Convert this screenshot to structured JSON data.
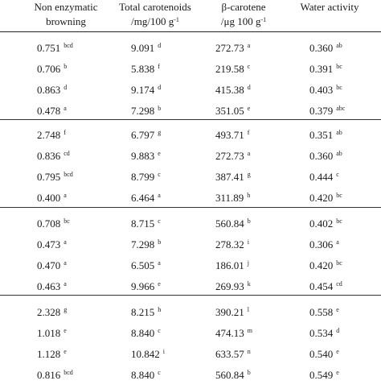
{
  "headers": [
    {
      "line1": "Non enzymatic",
      "line2": "browning",
      "unit_sup": ""
    },
    {
      "line1": "Total carotenoids",
      "line2": "/mg/100 g",
      "unit_sup": "-1"
    },
    {
      "line1": "β-carotene",
      "line2": "/μg 100 g",
      "unit_sup": "-1"
    },
    {
      "line1": "Water activity",
      "line2": "",
      "unit_sup": ""
    }
  ],
  "groups": [
    {
      "rows": [
        [
          {
            "v": "0.751",
            "s": "bcd"
          },
          {
            "v": "9.091",
            "s": "d"
          },
          {
            "v": "272.73",
            "s": "a"
          },
          {
            "v": "0.360",
            "s": "ab"
          }
        ],
        [
          {
            "v": "0.706",
            "s": "b"
          },
          {
            "v": "5.838",
            "s": "f"
          },
          {
            "v": "219.58",
            "s": "c"
          },
          {
            "v": "0.391",
            "s": "bc"
          }
        ],
        [
          {
            "v": "0.863",
            "s": "d"
          },
          {
            "v": "9.174",
            "s": "d"
          },
          {
            "v": "415.38",
            "s": "d"
          },
          {
            "v": "0.403",
            "s": "bc"
          }
        ],
        [
          {
            "v": "0.478",
            "s": "a"
          },
          {
            "v": "7.298",
            "s": "b"
          },
          {
            "v": "351.05",
            "s": "e"
          },
          {
            "v": "0.379",
            "s": "abc"
          }
        ]
      ]
    },
    {
      "rows": [
        [
          {
            "v": "2.748",
            "s": "f"
          },
          {
            "v": "6.797",
            "s": "g"
          },
          {
            "v": "493.71",
            "s": "f"
          },
          {
            "v": "0.351",
            "s": "ab"
          }
        ],
        [
          {
            "v": "0.836",
            "s": "cd"
          },
          {
            "v": "9.883",
            "s": "e"
          },
          {
            "v": "272.73",
            "s": "a"
          },
          {
            "v": "0.360",
            "s": "ab"
          }
        ],
        [
          {
            "v": "0.795",
            "s": "bcd"
          },
          {
            "v": "8.799",
            "s": "c"
          },
          {
            "v": "387.41",
            "s": "g"
          },
          {
            "v": "0.444",
            "s": "c"
          }
        ],
        [
          {
            "v": "0.400",
            "s": "a"
          },
          {
            "v": "6.464",
            "s": "a"
          },
          {
            "v": "311.89",
            "s": "h"
          },
          {
            "v": "0.420",
            "s": "bc"
          }
        ]
      ]
    },
    {
      "rows": [
        [
          {
            "v": "0.708",
            "s": "bc"
          },
          {
            "v": "8.715",
            "s": "c"
          },
          {
            "v": "560.84",
            "s": "b"
          },
          {
            "v": "0.402",
            "s": "bc"
          }
        ],
        [
          {
            "v": "0.473",
            "s": "a"
          },
          {
            "v": "7.298",
            "s": "b"
          },
          {
            "v": "278.32",
            "s": "i"
          },
          {
            "v": "0.306",
            "s": "a"
          }
        ],
        [
          {
            "v": "0.470",
            "s": "a"
          },
          {
            "v": "6.505",
            "s": "a"
          },
          {
            "v": "186.01",
            "s": "j"
          },
          {
            "v": "0.420",
            "s": "bc"
          }
        ],
        [
          {
            "v": "0.463",
            "s": "a"
          },
          {
            "v": "9.966",
            "s": "e"
          },
          {
            "v": "269.93",
            "s": "k"
          },
          {
            "v": "0.454",
            "s": "cd"
          }
        ]
      ]
    },
    {
      "rows": [
        [
          {
            "v": "2.328",
            "s": "g"
          },
          {
            "v": "8.215",
            "s": "h"
          },
          {
            "v": "390.21",
            "s": "l"
          },
          {
            "v": "0.558",
            "s": "e"
          }
        ],
        [
          {
            "v": "1.018",
            "s": "e"
          },
          {
            "v": "8.840",
            "s": "c"
          },
          {
            "v": "474.13",
            "s": "m"
          },
          {
            "v": "0.534",
            "s": "d"
          }
        ],
        [
          {
            "v": "1.128",
            "s": "e"
          },
          {
            "v": "10.842",
            "s": "i"
          },
          {
            "v": "633.57",
            "s": "n"
          },
          {
            "v": "0.540",
            "s": "e"
          }
        ],
        [
          {
            "v": "0.816",
            "s": "bcd"
          },
          {
            "v": "8.840",
            "s": "c"
          },
          {
            "v": "560.84",
            "s": "b"
          },
          {
            "v": "0.549",
            "s": "e"
          }
        ]
      ]
    }
  ]
}
